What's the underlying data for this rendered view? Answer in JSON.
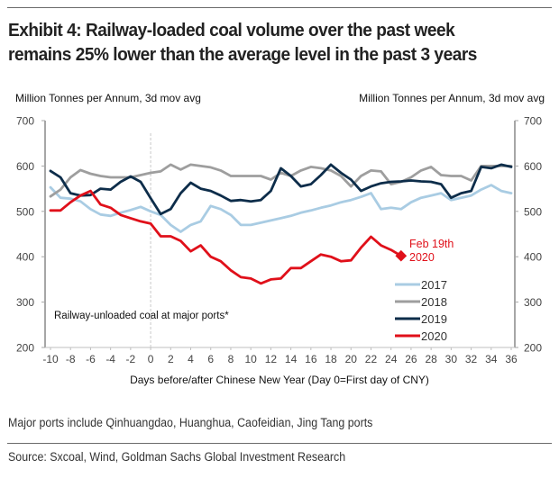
{
  "title": "Exhibit 4: Railway-loaded coal volume over the past week remains 25% lower than the average level in the past 3 years",
  "footnote": "Major ports include Qinhuangdao, Huanghua, Caofeidian, Jing Tang ports",
  "source": "Source: Sxcoal, Wind, Goldman Sachs Global Investment Research",
  "chart_data": {
    "type": "line",
    "title": "Exhibit 4: Railway-loaded coal volume over the past week remains 25% lower than the average level in the past 3 years",
    "ylabel_left": "Million Tonnes per Annum, 3d mov avg",
    "ylabel_right": "Million Tonnes per Annum, 3d mov avg",
    "xlabel": "Days before/after Chinese New Year (Day 0=First day of CNY)",
    "inner_label": "Railway-unloaded coal at major ports*",
    "annotation": {
      "text_line1": "Feb 19th",
      "text_line2": "2020",
      "series": "2020",
      "x": 25
    },
    "ylim": [
      200,
      700
    ],
    "yticks": [
      200,
      300,
      400,
      500,
      600,
      700
    ],
    "xlim": [
      -10,
      36
    ],
    "xticks": [
      -10,
      -8,
      -6,
      -4,
      -2,
      0,
      2,
      4,
      6,
      8,
      10,
      12,
      14,
      16,
      18,
      20,
      22,
      24,
      26,
      28,
      30,
      32,
      34,
      36
    ],
    "vline_x": 0,
    "grid": false,
    "legend_position": "bottom-right",
    "x": [
      -10,
      -9,
      -8,
      -7,
      -6,
      -5,
      -4,
      -3,
      -2,
      -1,
      0,
      1,
      2,
      3,
      4,
      5,
      6,
      7,
      8,
      9,
      10,
      11,
      12,
      13,
      14,
      15,
      16,
      17,
      18,
      19,
      20,
      21,
      22,
      23,
      24,
      25,
      26,
      27,
      28,
      29,
      30,
      31,
      32,
      33,
      34,
      35,
      36
    ],
    "series": [
      {
        "name": "2017",
        "color": "#a9cce3",
        "values": [
          553,
          530,
          528,
          522,
          505,
          493,
          490,
          497,
          503,
          510,
          500,
          492,
          470,
          455,
          470,
          478,
          512,
          505,
          492,
          470,
          470,
          475,
          480,
          485,
          490,
          497,
          502,
          508,
          513,
          520,
          525,
          532,
          540,
          505,
          508,
          505,
          520,
          530,
          535,
          540,
          525,
          530,
          535,
          548,
          558,
          545,
          540
        ]
      },
      {
        "name": "2018",
        "color": "#9e9e9e",
        "values": [
          533,
          548,
          575,
          591,
          583,
          578,
          575,
          575,
          575,
          580,
          585,
          588,
          603,
          592,
          603,
          600,
          597,
          590,
          578,
          578,
          578,
          578,
          570,
          585,
          578,
          590,
          598,
          595,
          590,
          578,
          555,
          578,
          590,
          588,
          560,
          565,
          575,
          590,
          598,
          580,
          578,
          578,
          568,
          600,
          600,
          600,
          600
        ]
      },
      {
        "name": "2019",
        "color": "#0d2d4a",
        "values": [
          589,
          575,
          540,
          535,
          536,
          550,
          548,
          565,
          577,
          565,
          529,
          494,
          505,
          540,
          563,
          550,
          545,
          535,
          523,
          525,
          522,
          525,
          545,
          595,
          578,
          555,
          560,
          580,
          603,
          585,
          570,
          545,
          555,
          562,
          565,
          566,
          568,
          566,
          565,
          560,
          530,
          540,
          545,
          598,
          595,
          603,
          598
        ]
      },
      {
        "name": "2020",
        "color": "#e0101a",
        "values": [
          502,
          502,
          520,
          535,
          545,
          515,
          508,
          492,
          485,
          478,
          473,
          445,
          445,
          435,
          412,
          425,
          400,
          390,
          370,
          355,
          352,
          341,
          350,
          352,
          375,
          375,
          390,
          405,
          400,
          390,
          392,
          420,
          444,
          425,
          415,
          402
        ]
      }
    ]
  }
}
